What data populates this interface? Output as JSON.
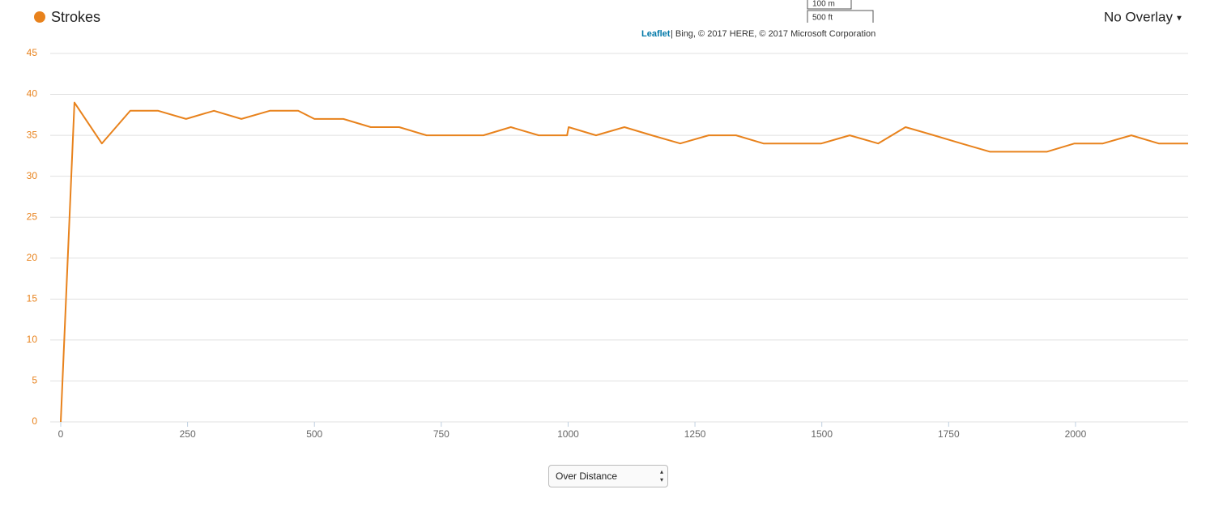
{
  "chart_data": {
    "type": "line",
    "x": [
      0,
      27,
      81,
      137,
      192,
      247,
      302,
      356,
      412,
      468,
      500,
      557,
      611,
      667,
      721,
      777,
      833,
      887,
      942,
      998,
      1001,
      1055,
      1111,
      1165,
      1221,
      1277,
      1331,
      1385,
      1441,
      1499,
      1555,
      1611,
      1665,
      1721,
      1775,
      1831,
      1888,
      1944,
      1998,
      2054,
      2110,
      2164,
      2222
    ],
    "series": [
      {
        "name": "Strokes",
        "color": "#e8821c",
        "values": [
          0,
          39,
          34,
          38,
          38,
          37,
          38,
          37,
          38,
          38,
          37,
          37,
          36,
          36,
          35,
          35,
          35,
          36,
          35,
          35,
          36,
          35,
          36,
          35,
          34,
          35,
          35,
          34,
          34,
          34,
          35,
          34,
          36,
          35,
          34,
          33,
          33,
          33,
          34,
          34,
          35,
          34,
          34
        ]
      }
    ],
    "xlim": [
      0,
      2222
    ],
    "ylim": [
      0,
      45
    ],
    "xticks": [
      0,
      250,
      500,
      750,
      1000,
      1250,
      1500,
      1750,
      2000
    ],
    "yticks": [
      0,
      5,
      10,
      15,
      20,
      25,
      30,
      35,
      40,
      45
    ],
    "grid": true
  },
  "overlay": "No Overlay",
  "scale": {
    "metric": "100 m",
    "imperial": "500 ft"
  },
  "attribution": {
    "link": "Leaflet",
    "text": "| Bing, © 2017 HERE, © 2017 Microsoft Corporation"
  },
  "mode_select": "Over Distance"
}
